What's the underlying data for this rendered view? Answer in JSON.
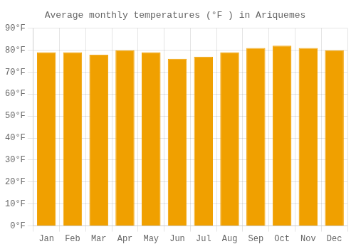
{
  "chart_data": {
    "type": "bar",
    "title": "Average monthly temperatures (°F ) in Ariquemes",
    "categories": [
      "Jan",
      "Feb",
      "Mar",
      "Apr",
      "May",
      "Jun",
      "Jul",
      "Aug",
      "Sep",
      "Oct",
      "Nov",
      "Dec"
    ],
    "values": [
      79,
      79,
      78,
      80,
      79,
      76,
      77,
      79,
      81,
      82,
      81,
      80
    ],
    "color": "#F0A000",
    "ylim": [
      0,
      90
    ],
    "yticks": [
      {
        "value": 0,
        "label": "0°F"
      },
      {
        "value": 10,
        "label": "10°F"
      },
      {
        "value": 20,
        "label": "20°F"
      },
      {
        "value": 30,
        "label": "30°F"
      },
      {
        "value": 40,
        "label": "40°F"
      },
      {
        "value": 50,
        "label": "50°F"
      },
      {
        "value": 60,
        "label": "60°F"
      },
      {
        "value": 70,
        "label": "70°F"
      },
      {
        "value": 80,
        "label": "80°F"
      },
      {
        "value": 90,
        "label": "90°F"
      }
    ],
    "grid": true
  }
}
